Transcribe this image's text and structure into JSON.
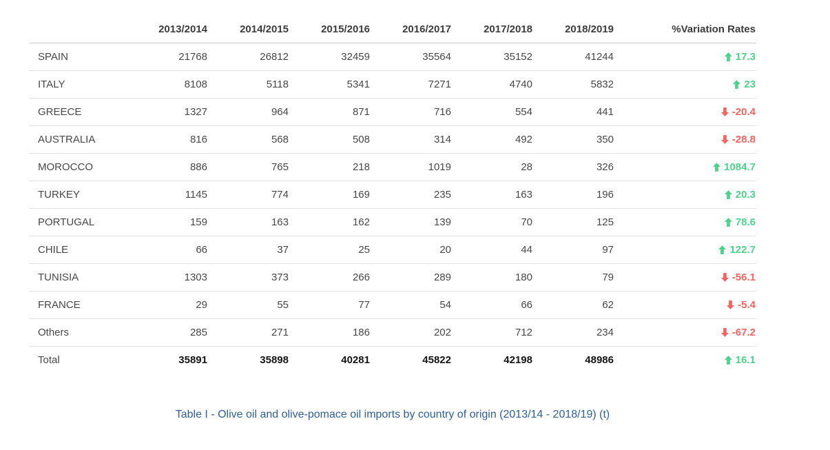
{
  "chart_data": {
    "type": "table",
    "title": "Table I - Olive oil and olive-pomace oil imports by country of origin (2013/14 - 2018/19) (t)",
    "columns": [
      "",
      "2013/2014",
      "2014/2015",
      "2015/2016",
      "2016/2017",
      "2017/2018",
      "2018/2019",
      "%Variation Rates"
    ],
    "rows": [
      {
        "country": "SPAIN",
        "values": [
          21768,
          26812,
          32459,
          35564,
          35152,
          41244
        ],
        "variation": "17.3",
        "direction": "up",
        "total": false
      },
      {
        "country": "ITALY",
        "values": [
          8108,
          5118,
          5341,
          7271,
          4740,
          5832
        ],
        "variation": "23",
        "direction": "up",
        "total": false
      },
      {
        "country": "GREECE",
        "values": [
          1327,
          964,
          871,
          716,
          554,
          441
        ],
        "variation": "-20.4",
        "direction": "down",
        "total": false
      },
      {
        "country": "AUSTRALIA",
        "values": [
          816,
          568,
          508,
          314,
          492,
          350
        ],
        "variation": "-28.8",
        "direction": "down",
        "total": false
      },
      {
        "country": "MOROCCO",
        "values": [
          886,
          765,
          218,
          1019,
          28,
          326
        ],
        "variation": "1084.7",
        "direction": "up",
        "total": false
      },
      {
        "country": "TURKEY",
        "values": [
          1145,
          774,
          169,
          235,
          163,
          196
        ],
        "variation": "20.3",
        "direction": "up",
        "total": false
      },
      {
        "country": "PORTUGAL",
        "values": [
          159,
          163,
          162,
          139,
          70,
          125
        ],
        "variation": "78.6",
        "direction": "up",
        "total": false
      },
      {
        "country": "CHILE",
        "values": [
          66,
          37,
          25,
          20,
          44,
          97
        ],
        "variation": "122.7",
        "direction": "up",
        "total": false
      },
      {
        "country": "TUNISIA",
        "values": [
          1303,
          373,
          266,
          289,
          180,
          79
        ],
        "variation": "-56.1",
        "direction": "down",
        "total": false
      },
      {
        "country": "FRANCE",
        "values": [
          29,
          55,
          77,
          54,
          66,
          62
        ],
        "variation": "-5.4",
        "direction": "down",
        "total": false
      },
      {
        "country": "Others",
        "values": [
          285,
          271,
          186,
          202,
          712,
          234
        ],
        "variation": "-67.2",
        "direction": "down",
        "total": false
      },
      {
        "country": "Total",
        "values": [
          35891,
          35898,
          40281,
          45822,
          42198,
          48986
        ],
        "variation": "16.1",
        "direction": "up",
        "total": true
      }
    ]
  },
  "icons": {
    "up": "up-arrow-icon",
    "down": "down-arrow-icon"
  },
  "colors": {
    "positive": "#4ed38a",
    "negative": "#f9625f",
    "caption": "#2d5f9b"
  }
}
